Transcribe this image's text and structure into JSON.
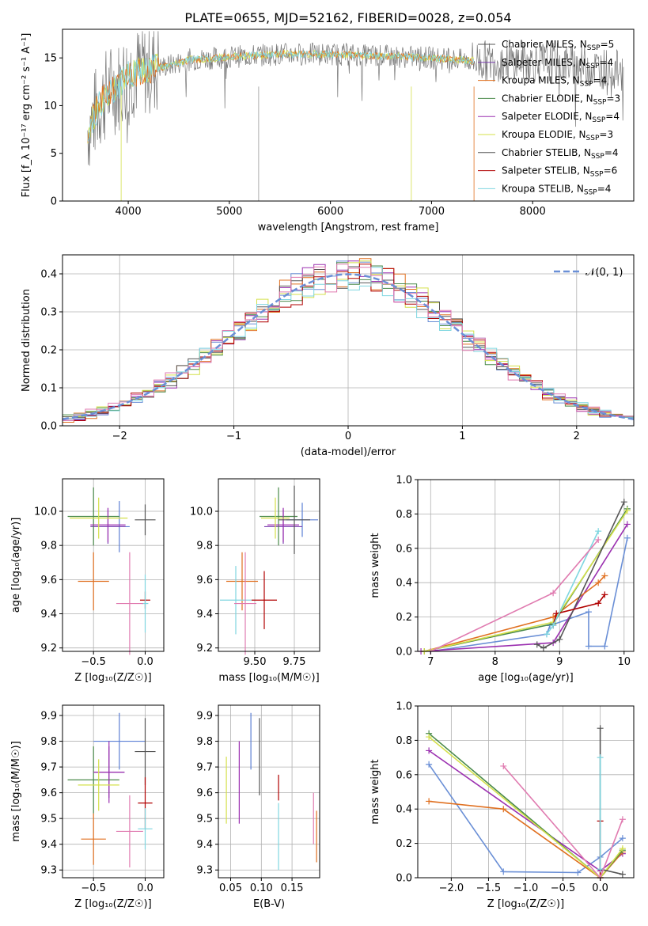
{
  "figure_title": "PLATE=0655, MJD=52162, FIBERID=0028, z=0.054",
  "colors": {
    "Chabrier MILES": "#1f3fbf",
    "Salpeter MILES": "#7b1fa2",
    "Kroupa MILES": "#e07020",
    "Chabrier ELODIE": "#3a7a3a",
    "Salpeter ELODIE": "#9b30b0",
    "Kroupa ELODIE": "#d4e04a",
    "Chabrier STELIB": "#444444",
    "Salpeter STELIB": "#b00000",
    "Kroupa STELIB": "#7fd6e0",
    "normal": "#6a8fd6"
  },
  "chart_data": [
    {
      "id": "spectrum",
      "type": "line",
      "xlabel": "wavelength [Angstrom, rest frame]",
      "ylabel": "Flux [f_λ 10⁻¹⁷ erg cm⁻² s⁻¹ A⁻¹]",
      "xlim": [
        3350,
        9000
      ],
      "ylim": [
        0,
        18
      ],
      "xticks": [
        "4000",
        "5000",
        "6000",
        "7000",
        "8000"
      ],
      "yticks": [
        "0",
        "5",
        "10",
        "15"
      ],
      "legend": [
        "Chabrier MILES, N_SSP=5",
        "Salpeter MILES, N_SSP=4",
        "Kroupa MILES, N_SSP=4",
        "Chabrier ELODIE, N_SSP=3",
        "Salpeter ELODIE, N_SSP=4",
        "Kroupa ELODIE, N_SSP=3",
        "Chabrier STELIB, N_SSP=4",
        "Salpeter STELIB, N_SSP=6",
        "Kroupa STELIB, N_SSP=4"
      ],
      "legend_placement": "right",
      "continuum": {
        "x": [
          3600,
          3700,
          3800,
          3900,
          4000,
          4200,
          4400,
          4600,
          5000,
          5500,
          6000,
          6500,
          7000,
          7400,
          8000,
          8500,
          8900
        ],
        "y": [
          7.5,
          9.8,
          11.5,
          12.0,
          13.3,
          13.8,
          14.2,
          14.8,
          15.1,
          15.4,
          15.4,
          15.2,
          15.0,
          14.7,
          14.6,
          14.2,
          13.6
        ]
      },
      "data_range": [
        3600,
        8900
      ],
      "model_range": [
        3600,
        7420
      ]
    },
    {
      "id": "residuals",
      "type": "histogram",
      "xlabel": "(data-model)/error",
      "ylabel": "Normed distribution",
      "xlim": [
        -2.5,
        2.5
      ],
      "ylim": [
        0,
        0.45
      ],
      "xticks": [
        "−2",
        "−1",
        "0",
        "1",
        "2"
      ],
      "yticks": [
        "0.0",
        "0.1",
        "0.2",
        "0.3",
        "0.4"
      ],
      "legend": [
        "𝒩(0, 1)"
      ],
      "legend_placement": "top-right",
      "bin_width": 0.1
    },
    {
      "id": "age_vs_Z",
      "type": "errorbar",
      "xlabel": "Z [log₁₀(Z/Z☉)]",
      "ylabel": "age  [log₁₀(age/yr)]",
      "xlim": [
        -0.8,
        0.18
      ],
      "ylim": [
        9.18,
        10.19
      ],
      "xticks": [
        "−0.5",
        "0.0"
      ],
      "yticks": [
        "9.2",
        "9.4",
        "9.6",
        "9.8",
        "10.0"
      ],
      "points": [
        {
          "model": "Chabrier MILES",
          "x": -0.25,
          "xerr": 0.1,
          "y": 9.91,
          "yerr": 0.15
        },
        {
          "model": "Salpeter MILES",
          "x": -0.36,
          "xerr": 0.17,
          "y": 9.91,
          "yerr": 0.1
        },
        {
          "model": "Kroupa MILES",
          "x": -0.5,
          "xerr": 0.15,
          "y": 9.59,
          "yerr": 0.17
        },
        {
          "model": "Chabrier ELODIE",
          "x": -0.5,
          "xerr": 0.25,
          "y": 9.97,
          "yerr": 0.17
        },
        {
          "model": "Salpeter ELODIE",
          "x": -0.36,
          "xerr": 0.17,
          "y": 9.92,
          "yerr": 0.1
        },
        {
          "model": "Kroupa ELODIE",
          "x": -0.45,
          "xerr": 0.28,
          "y": 9.96,
          "yerr": 0.12
        },
        {
          "model": "Chabrier STELIB",
          "x": 0.0,
          "xerr": 0.1,
          "y": 9.95,
          "yerr": 0.09
        },
        {
          "model": "Salpeter STELIB",
          "x": 0.0,
          "xerr": 0.05,
          "y": 9.48,
          "yerr": 0.05
        },
        {
          "model": "Kroupa STELIB",
          "x": 0.0,
          "xerr": 0.03,
          "y": 9.46,
          "yerr": 0.17
        },
        {
          "model": "Kroupa MILES pink",
          "x": -0.15,
          "xerr": 0.13,
          "y": 9.46,
          "yerr": 0.3
        }
      ]
    },
    {
      "id": "age_vs_mass",
      "type": "errorbar",
      "xlabel": "mass [log₁₀(M/M☉)]",
      "ylabel": "",
      "xlim": [
        9.27,
        9.91
      ],
      "ylim": [
        9.18,
        10.19
      ],
      "xticks": [
        "9.50",
        "9.75"
      ],
      "yticks": [
        "9.2",
        "9.4",
        "9.6",
        "9.8",
        "10.0"
      ],
      "points": [
        {
          "model": "Chabrier MILES",
          "x": 9.8,
          "xerr": 0.1,
          "y": 9.95,
          "yerr": 0.1
        },
        {
          "model": "Salpeter MILES",
          "x": 9.68,
          "xerr": 0.12,
          "y": 9.91,
          "yerr": 0.1
        },
        {
          "model": "Kroupa MILES",
          "x": 9.42,
          "xerr": 0.1,
          "y": 9.59,
          "yerr": 0.17
        },
        {
          "model": "Chabrier ELODIE",
          "x": 9.65,
          "xerr": 0.12,
          "y": 9.97,
          "yerr": 0.17
        },
        {
          "model": "Salpeter ELODIE",
          "x": 9.68,
          "xerr": 0.1,
          "y": 9.92,
          "yerr": 0.1
        },
        {
          "model": "Kroupa ELODIE",
          "x": 9.63,
          "xerr": 0.09,
          "y": 9.96,
          "yerr": 0.12
        },
        {
          "model": "Chabrier STELIB",
          "x": 9.75,
          "xerr": 0.1,
          "y": 9.95,
          "yerr": 0.2
        },
        {
          "model": "Salpeter STELIB",
          "x": 9.56,
          "xerr": 0.08,
          "y": 9.48,
          "yerr": 0.17
        },
        {
          "model": "Kroupa STELIB",
          "x": 9.38,
          "xerr": 0.1,
          "y": 9.48,
          "yerr": 0.2
        },
        {
          "model": "Kroupa MILES pink",
          "x": 9.44,
          "xerr": 0.07,
          "y": 9.46,
          "yerr": 0.3
        }
      ]
    },
    {
      "id": "mw_vs_age",
      "type": "line",
      "xlabel": "age  [log₁₀(age/yr)]",
      "ylabel": "mass weight",
      "xlim": [
        6.8,
        10.15
      ],
      "ylim": [
        0,
        1
      ],
      "xticks": [
        "7",
        "8",
        "9",
        "10"
      ],
      "yticks": [
        "0.0",
        "0.2",
        "0.4",
        "0.6",
        "0.8",
        "1.0"
      ],
      "series": [
        {
          "model": "Chabrier MILES",
          "color_key": "normal",
          "x": [
            7.0,
            8.8,
            8.85,
            9.45,
            9.45,
            9.7,
            10.05
          ],
          "y": [
            0.0,
            0.1,
            0.15,
            0.23,
            0.03,
            0.03,
            0.66
          ]
        },
        {
          "model": "Salpeter MILES",
          "color_key": "Salpeter ELODIE",
          "x": [
            6.85,
            8.9,
            10.05
          ],
          "y": [
            0.0,
            0.05,
            0.74
          ]
        },
        {
          "model": "Kroupa MILES",
          "color_key": "Kroupa MILES",
          "x": [
            6.9,
            8.9,
            9.6,
            9.7
          ],
          "y": [
            0.0,
            0.2,
            0.4,
            0.44
          ]
        },
        {
          "model": "Chabrier ELODIE",
          "color_key": "Chabrier ELODIE",
          "x": [
            6.9,
            8.9,
            10.05
          ],
          "y": [
            0.0,
            0.16,
            0.83
          ]
        },
        {
          "model": "Kroupa ELODIE",
          "color_key": "Kroupa ELODIE",
          "x": [
            6.9,
            8.9,
            10.05
          ],
          "y": [
            0.0,
            0.17,
            0.82
          ]
        },
        {
          "model": "Chabrier STELIB",
          "color_key": "Chabrier STELIB",
          "x": [
            8.65,
            8.75,
            9.0,
            10.0
          ],
          "y": [
            0.04,
            0.02,
            0.07,
            0.87
          ]
        },
        {
          "model": "Salpeter STELIB",
          "color_key": "Salpeter STELIB",
          "x": [
            8.9,
            8.95,
            9.6,
            9.7
          ],
          "y": [
            0.15,
            0.22,
            0.28,
            0.33
          ]
        },
        {
          "model": "Kroupa STELIB",
          "color_key": "Kroupa STELIB",
          "x": [
            8.8,
            8.9,
            9.6
          ],
          "y": [
            0.1,
            0.15,
            0.7
          ]
        },
        {
          "model": "Kroupa MILES pink",
          "color_key": "pink",
          "x": [
            7.0,
            8.9,
            9.6
          ],
          "y": [
            0.0,
            0.34,
            0.65
          ]
        }
      ]
    },
    {
      "id": "mass_vs_Z",
      "type": "errorbar",
      "xlabel": "Z [log₁₀(Z/Z☉)]",
      "ylabel": "mass [log₁₀(M/M☉)]",
      "xlim": [
        -0.8,
        0.18
      ],
      "ylim": [
        9.27,
        9.94
      ],
      "xticks": [
        "−0.5",
        "0.0"
      ],
      "yticks": [
        "9.3",
        "9.4",
        "9.5",
        "9.6",
        "9.7",
        "9.8",
        "9.9"
      ],
      "points": [
        {
          "model": "Chabrier MILES",
          "x": -0.25,
          "xerr": 0.25,
          "y": 9.8,
          "yerr": 0.11
        },
        {
          "model": "Salpeter MILES",
          "x": -0.35,
          "xerr": 0.15,
          "y": 9.68,
          "yerr": 0.1
        },
        {
          "model": "Kroupa MILES",
          "x": -0.5,
          "xerr": 0.12,
          "y": 9.42,
          "yerr": 0.1
        },
        {
          "model": "Chabrier ELODIE",
          "x": -0.5,
          "xerr": 0.25,
          "y": 9.65,
          "yerr": 0.13
        },
        {
          "model": "Salpeter ELODIE",
          "x": -0.35,
          "xerr": 0.15,
          "y": 9.68,
          "yerr": 0.12
        },
        {
          "model": "Kroupa ELODIE",
          "x": -0.45,
          "xerr": 0.2,
          "y": 9.63,
          "yerr": 0.1
        },
        {
          "model": "Chabrier STELIB",
          "x": 0.0,
          "xerr": 0.1,
          "y": 9.76,
          "yerr": 0.13
        },
        {
          "model": "Salpeter STELIB",
          "x": 0.0,
          "xerr": 0.07,
          "y": 9.56,
          "yerr": 0.1
        },
        {
          "model": "Kroupa STELIB",
          "x": 0.0,
          "xerr": 0.07,
          "y": 9.46,
          "yerr": 0.08
        },
        {
          "model": "Kroupa MILES pink",
          "x": -0.15,
          "xerr": 0.13,
          "y": 9.45,
          "yerr": 0.14
        }
      ]
    },
    {
      "id": "mass_vs_ebv",
      "type": "errorbar",
      "xlabel": "E(B-V)",
      "ylabel": "",
      "xlim": [
        0.03,
        0.195
      ],
      "ylim": [
        9.27,
        9.94
      ],
      "xticks": [
        "0.05",
        "0.10",
        "0.15"
      ],
      "yticks": [
        "9.3",
        "9.4",
        "9.5",
        "9.6",
        "9.7",
        "9.8",
        "9.9"
      ],
      "points": [
        {
          "model": "Kroupa ELODIE",
          "x": 0.043,
          "y": 9.61,
          "yerr": 0.13
        },
        {
          "model": "Salpeter ELODIE",
          "x": 0.064,
          "y": 9.64,
          "yerr": 0.16
        },
        {
          "model": "Chabrier MILES",
          "x": 0.083,
          "y": 9.8,
          "yerr": 0.11
        },
        {
          "model": "Chabrier STELIB",
          "x": 0.097,
          "y": 9.74,
          "yerr": 0.15
        },
        {
          "model": "Salpeter STELIB",
          "x": 0.128,
          "y": 9.62,
          "yerr": 0.05
        },
        {
          "model": "Kroupa STELIB",
          "x": 0.128,
          "y": 9.43,
          "yerr": 0.13
        },
        {
          "model": "Kroupa MILES pink",
          "x": 0.185,
          "y": 9.5,
          "yerr": 0.1
        },
        {
          "model": "Kroupa MILES",
          "x": 0.19,
          "y": 9.43,
          "yerr": 0.1
        }
      ]
    },
    {
      "id": "mw_vs_Z",
      "type": "line",
      "xlabel": "Z [log₁₀(Z/Z☉)]",
      "ylabel": "mass weight",
      "xlim": [
        -2.45,
        0.45
      ],
      "ylim": [
        0,
        1
      ],
      "xticks": [
        "−2.0",
        "−1.5",
        "−1.0",
        "−0.5",
        "0.0"
      ],
      "yticks": [
        "0.0",
        "0.2",
        "0.4",
        "0.6",
        "0.8",
        "1.0"
      ],
      "series": [
        {
          "model": "Chabrier MILES",
          "color_key": "normal",
          "x": [
            -2.3,
            -1.3,
            -0.3,
            0.0,
            0.3
          ],
          "y": [
            0.66,
            0.035,
            0.03,
            0.12,
            0.23
          ]
        },
        {
          "model": "Salpeter MILES",
          "color_key": "Salpeter ELODIE",
          "x": [
            -2.3,
            0.0,
            0.3
          ],
          "y": [
            0.74,
            0.04,
            0.14
          ]
        },
        {
          "model": "Kroupa MILES",
          "color_key": "Kroupa MILES",
          "x": [
            -2.3,
            -1.3,
            0.0,
            0.3
          ],
          "y": [
            0.445,
            0.4,
            0.0,
            0.15
          ]
        },
        {
          "model": "Chabrier ELODIE",
          "color_key": "Chabrier ELODIE",
          "x": [
            -2.3,
            0.0,
            0.3
          ],
          "y": [
            0.84,
            0.0,
            0.16
          ]
        },
        {
          "model": "Kroupa ELODIE",
          "color_key": "Kroupa ELODIE",
          "x": [
            -2.3,
            0.0,
            0.3
          ],
          "y": [
            0.82,
            0.0,
            0.17
          ]
        },
        {
          "model": "Chabrier STELIB",
          "color_key": "Chabrier STELIB",
          "x": [
            0.0,
            0.0,
            0.3
          ],
          "y": [
            0.87,
            0.05,
            0.02
          ]
        },
        {
          "model": "Salpeter STELIB",
          "color_key": "Salpeter STELIB",
          "x": [
            0.0,
            0.0
          ],
          "y": [
            0.33,
            0.0
          ]
        },
        {
          "model": "Kroupa STELIB",
          "color_key": "Kroupa STELIB",
          "x": [
            0.0,
            0.0
          ],
          "y": [
            0.7,
            0.05
          ]
        },
        {
          "model": "Kroupa MILES pink",
          "color_key": "pink",
          "x": [
            -1.3,
            0.0,
            0.3
          ],
          "y": [
            0.65,
            0.0,
            0.34
          ]
        }
      ]
    }
  ]
}
